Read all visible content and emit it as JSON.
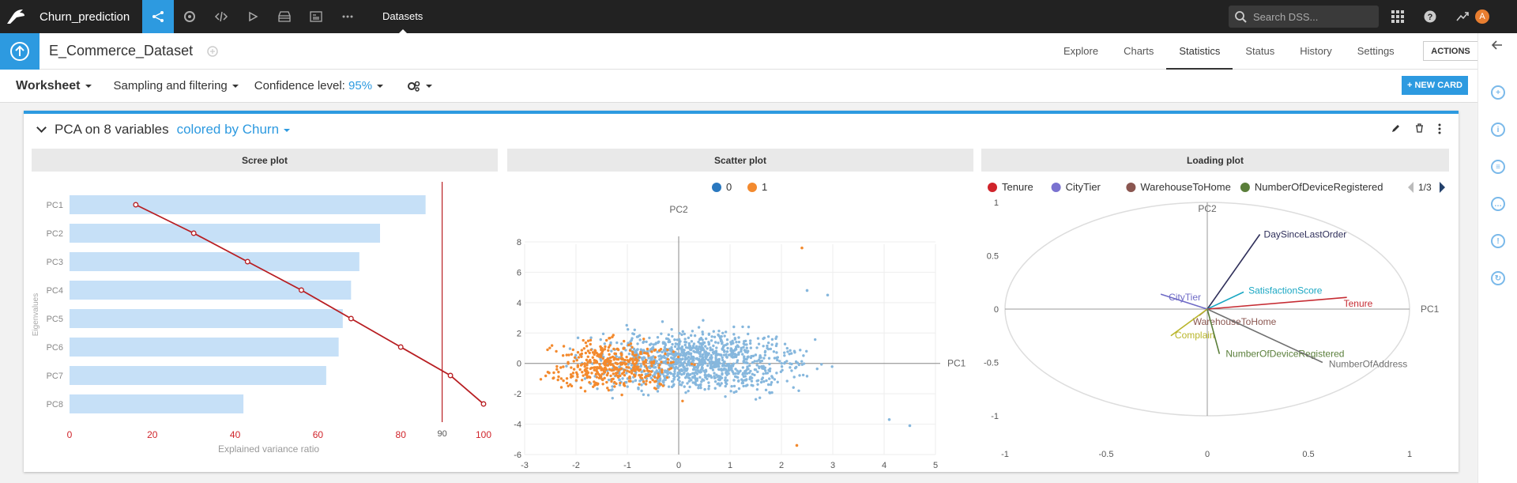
{
  "app": {
    "project_name": "Churn_prediction",
    "nav_tab": "Datasets",
    "search_placeholder": "Search DSS...",
    "avatar_letter": "A"
  },
  "dataset": {
    "name": "E_Commerce_Dataset"
  },
  "tabs": [
    {
      "label": "Explore",
      "active": false
    },
    {
      "label": "Charts",
      "active": false
    },
    {
      "label": "Statistics",
      "active": true
    },
    {
      "label": "Status",
      "active": false
    },
    {
      "label": "History",
      "active": false
    },
    {
      "label": "Settings",
      "active": false
    }
  ],
  "actions_label": "ACTIONS",
  "toolbar": {
    "worksheet": "Worksheet",
    "sampling": "Sampling and filtering",
    "confidence_label": "Confidence level:",
    "confidence_value": "95%",
    "new_card": "+ NEW CARD"
  },
  "card": {
    "title": "PCA on 8 variables",
    "colored_by": "colored by Churn"
  },
  "panels": {
    "scree": "Scree plot",
    "scatter": "Scatter plot",
    "loading": "Loading plot"
  },
  "colors": {
    "accent": "#2d9ae0",
    "scree_bar": "#c6e0f7",
    "scree_line": "#b81e22",
    "class0": "#86b7dd",
    "class1": "#f38a2e"
  },
  "chart_data": [
    {
      "type": "bar",
      "title": "Scree plot",
      "categories": [
        "PC1",
        "PC2",
        "PC3",
        "PC4",
        "PC5",
        "PC6",
        "PC7",
        "PC8"
      ],
      "series": [
        {
          "values": [
            86,
            75,
            70,
            68,
            66,
            65,
            62,
            42
          ]
        },
        {
          "values": [
            16,
            30,
            43,
            56,
            68,
            80,
            92,
            100
          ]
        }
      ],
      "ylabel": "Eigenvalues",
      "xlabel": "Explained variance ratio",
      "xlim": [
        0,
        100
      ],
      "xticks": [
        0,
        20,
        40,
        60,
        80,
        100
      ],
      "threshold": 90
    },
    {
      "type": "scatter",
      "title": "Scatter plot",
      "xlabel": "PC1",
      "ylabel": "PC2",
      "xlim": [
        -3,
        5
      ],
      "ylim": [
        -6,
        8
      ],
      "xticks": [
        -3,
        -2,
        -1,
        0,
        1,
        2,
        3,
        4,
        5
      ],
      "yticks": [
        -6,
        -4,
        -2,
        0,
        2,
        4,
        6,
        8
      ],
      "legend": [
        "0",
        "1"
      ],
      "outliers0": [
        [
          4.1,
          -3.7
        ],
        [
          4.5,
          -4.1
        ],
        [
          2.5,
          4.8
        ],
        [
          2.9,
          4.5
        ]
      ],
      "outliers1": [
        [
          2.4,
          7.6
        ],
        [
          2.3,
          -5.4
        ]
      ]
    },
    {
      "type": "scatter",
      "title": "Loading plot",
      "xlabel": "PC1",
      "ylabel": "PC2",
      "xlim": [
        -1,
        1
      ],
      "ylim": [
        -1,
        1
      ],
      "xticks": [
        "-1",
        "-0.5",
        "0",
        "0.5",
        "1"
      ],
      "yticks": [
        "1",
        "0.5",
        "0",
        "-0.5",
        "-1"
      ],
      "legend": [
        {
          "label": "Tenure",
          "color": "#d0242b"
        },
        {
          "label": "CityTier",
          "color": "#7a72d0"
        },
        {
          "label": "WarehouseToHome",
          "color": "#8a5650"
        },
        {
          "label": "NumberOfDeviceRegistered",
          "color": "#5a7e3a"
        }
      ],
      "page_indicator": "1/3",
      "vectors": [
        {
          "label": "DaySinceLastOrder",
          "x": 0.26,
          "y": 0.7,
          "color": "#2f2f5a"
        },
        {
          "label": "SatisfactionScore",
          "x": 0.18,
          "y": 0.16,
          "color": "#1aa7c3"
        },
        {
          "label": "Tenure",
          "x": 0.69,
          "y": 0.11,
          "color": "#c62c33"
        },
        {
          "label": "CityTier",
          "x": -0.23,
          "y": 0.14,
          "color": "#6f6bc6"
        },
        {
          "label": "WarehouseToHome",
          "x": -0.04,
          "y": -0.06,
          "color": "#8a5650"
        },
        {
          "label": "Complain",
          "x": -0.18,
          "y": -0.25,
          "color": "#b9b52a"
        },
        {
          "label": "NumberOfDeviceRegistered",
          "x": 0.06,
          "y": -0.42,
          "color": "#5a7e3a"
        },
        {
          "label": "NumberOfAddress",
          "x": 0.57,
          "y": -0.5,
          "color": "#707070"
        }
      ]
    }
  ]
}
